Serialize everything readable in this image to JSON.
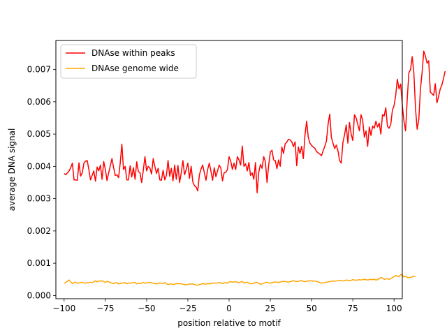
{
  "chart_data": {
    "type": "line",
    "title": "",
    "xlabel": "position relative to motif",
    "ylabel": "average DNA signal",
    "xlim": [
      -105,
      105
    ],
    "ylim": [
      -0.0001,
      0.0079
    ],
    "x_ticks": [
      -100,
      -75,
      -50,
      -25,
      0,
      25,
      50,
      75,
      100
    ],
    "x_tick_labels": [
      "−100",
      "−75",
      "−50",
      "−25",
      "0",
      "25",
      "50",
      "75",
      "100"
    ],
    "y_ticks": [
      0.0,
      0.001,
      0.002,
      0.003,
      0.004,
      0.005,
      0.006,
      0.007
    ],
    "y_tick_labels": [
      "0.000",
      "0.001",
      "0.002",
      "0.003",
      "0.004",
      "0.005",
      "0.006",
      "0.007"
    ],
    "grid": false,
    "legend_position": "top-left",
    "x_start": -100,
    "x_step": 1,
    "series": [
      {
        "name": "DNAse within peaks",
        "color": "#ff0000",
        "values": [
          0.00378,
          0.00374,
          0.0038,
          0.00386,
          0.00396,
          0.0041,
          0.00358,
          0.00358,
          0.00357,
          0.00411,
          0.0037,
          0.0038,
          0.0041,
          0.00416,
          0.00418,
          0.0039,
          0.00358,
          0.00372,
          0.00386,
          0.00354,
          0.00398,
          0.00386,
          0.00404,
          0.0036,
          0.00415,
          0.0039,
          0.00356,
          0.0038,
          0.00402,
          0.00424,
          0.00396,
          0.00372,
          0.00374,
          0.00365,
          0.0041,
          0.00469,
          0.0039,
          0.004,
          0.00358,
          0.00358,
          0.00402,
          0.00367,
          0.00396,
          0.0036,
          0.00414,
          0.00384,
          0.0038,
          0.0035,
          0.00388,
          0.0043,
          0.00386,
          0.004,
          0.00395,
          0.00376,
          0.00424,
          0.004,
          0.00378,
          0.00394,
          0.00358,
          0.00357,
          0.00388,
          0.00358,
          0.00372,
          0.00418,
          0.00369,
          0.00394,
          0.00355,
          0.00404,
          0.0036,
          0.00403,
          0.0035,
          0.0038,
          0.00418,
          0.00374,
          0.0039,
          0.0041,
          0.00363,
          0.004,
          0.00352,
          0.0034,
          0.00336,
          0.00324,
          0.00374,
          0.00392,
          0.00404,
          0.0038,
          0.00357,
          0.0039,
          0.0041,
          0.00385,
          0.00357,
          0.00396,
          0.00368,
          0.00386,
          0.00404,
          0.00395,
          0.00355,
          0.0038,
          0.00382,
          0.0039,
          0.0043,
          0.00416,
          0.00391,
          0.0041,
          0.0039,
          0.0043,
          0.0042,
          0.00404,
          0.00463,
          0.004,
          0.00408,
          0.00386,
          0.00412,
          0.00372,
          0.0038,
          0.0036,
          0.00412,
          0.00318,
          0.00382,
          0.00406,
          0.00394,
          0.0043,
          0.00415,
          0.0035,
          0.00405,
          0.00444,
          0.0045,
          0.0042,
          0.00418,
          0.00393,
          0.0042,
          0.004,
          0.0046,
          0.0044,
          0.0047,
          0.00475,
          0.00484,
          0.00482,
          0.00476,
          0.00461,
          0.00476,
          0.00402,
          0.0046,
          0.0044,
          0.00462,
          0.00424,
          0.00497,
          0.0054,
          0.0049,
          0.00472,
          0.00465,
          0.0046,
          0.00456,
          0.00446,
          0.00442,
          0.00438,
          0.00433,
          0.00448,
          0.00462,
          0.00478,
          0.0053,
          0.00562,
          0.0049,
          0.00472,
          0.00455,
          0.00466,
          0.00448,
          0.00418,
          0.0041,
          0.00474,
          0.00498,
          0.00528,
          0.00472,
          0.00536,
          0.005,
          0.0048,
          0.0056,
          0.0055,
          0.0053,
          0.0051,
          0.0056,
          0.00542,
          0.0049,
          0.0051,
          0.00462,
          0.00522,
          0.00496,
          0.00525,
          0.00518,
          0.0054,
          0.00522,
          0.00534,
          0.005,
          0.0056,
          0.00556,
          0.00582,
          0.00524,
          0.00518,
          0.0053,
          0.00574,
          0.00588,
          0.0062,
          0.0067,
          0.0064,
          0.00655,
          0.0059,
          0.0054,
          0.0051,
          0.0061,
          0.0069,
          0.007,
          0.0074,
          0.0069,
          0.0058,
          0.00515,
          0.00545,
          0.0064,
          0.0069,
          0.00757,
          0.00742,
          0.0072,
          0.00727,
          0.0063,
          0.00625,
          0.0062,
          0.00656,
          0.00597,
          0.00616,
          0.0064,
          0.00652,
          0.00673,
          0.00695
        ]
      },
      {
        "name": "DNAse genome wide",
        "color": "#ffa500",
        "values": [
          0.00038,
          0.0004,
          0.00044,
          0.00048,
          0.00042,
          0.00037,
          0.0004,
          0.00041,
          0.00038,
          0.00039,
          0.0004,
          0.00041,
          0.00039,
          0.00038,
          0.0004,
          0.00039,
          0.00041,
          0.0004,
          0.00042,
          0.00046,
          0.00042,
          0.00045,
          0.00044,
          0.00046,
          0.00043,
          0.0004,
          0.00044,
          0.00042,
          0.0004,
          0.00038,
          0.00037,
          0.00039,
          0.0004,
          0.00036,
          0.00037,
          0.00039,
          0.00038,
          0.0004,
          0.00036,
          0.00039,
          0.00038,
          0.00039,
          0.0004,
          0.0004,
          0.00036,
          0.00038,
          0.00037,
          0.00038,
          0.0004,
          0.00038,
          0.00039,
          0.0004,
          0.00041,
          0.00039,
          0.00038,
          0.00037,
          0.00036,
          0.00037,
          0.00039,
          0.00038,
          0.00037,
          0.0004,
          0.00036,
          0.00034,
          0.00035,
          0.00036,
          0.00034,
          0.00035,
          0.00037,
          0.00036,
          0.00037,
          0.00036,
          0.00035,
          0.00034,
          0.00033,
          0.00034,
          0.00036,
          0.00035,
          0.00036,
          0.00034,
          0.00032,
          0.00032,
          0.00034,
          0.00035,
          0.00037,
          0.00036,
          0.00035,
          0.00037,
          0.00036,
          0.00037,
          0.00038,
          0.00039,
          0.00038,
          0.00039,
          0.0004,
          0.00039,
          0.00037,
          0.00039,
          0.0004,
          0.00038,
          0.00042,
          0.00043,
          0.00041,
          0.00042,
          0.00043,
          0.00041,
          0.0004,
          0.00042,
          0.00043,
          0.00039,
          0.0004,
          0.00041,
          0.00038,
          0.00036,
          0.00037,
          0.00038,
          0.0004,
          0.00041,
          0.00037,
          0.00035,
          0.00036,
          0.00038,
          0.0004,
          0.00041,
          0.00039,
          0.00038,
          0.0004,
          0.00041,
          0.00042,
          0.00041,
          0.0004,
          0.00042,
          0.00043,
          0.00044,
          0.00043,
          0.00042,
          0.00041,
          0.00043,
          0.00044,
          0.00046,
          0.00044,
          0.00043,
          0.00044,
          0.00045,
          0.00046,
          0.00044,
          0.00043,
          0.00044,
          0.00045,
          0.00046,
          0.00045,
          0.00044,
          0.00045,
          0.00044,
          0.00042,
          0.0004,
          0.00038,
          0.00039,
          0.0004,
          0.00041,
          0.00042,
          0.00043,
          0.00044,
          0.00045,
          0.00044,
          0.00045,
          0.00046,
          0.00047,
          0.00046,
          0.00045,
          0.00046,
          0.00048,
          0.00047,
          0.00046,
          0.00047,
          0.00049,
          0.00048,
          0.00047,
          0.00048,
          0.00049,
          0.00048,
          0.00049,
          0.0005,
          0.00049,
          0.00048,
          0.00049,
          0.0005,
          0.00049,
          0.0005,
          0.00048,
          0.00049,
          0.00052,
          0.00056,
          0.00054,
          0.0005,
          0.00051,
          0.00052,
          0.0005,
          0.00052,
          0.00056,
          0.00058,
          0.00062,
          0.0006,
          0.00058,
          0.00065,
          0.00063,
          0.00057,
          0.0006,
          0.00056,
          0.00055,
          0.00056,
          0.00058,
          0.00059,
          0.00059
        ]
      }
    ]
  }
}
